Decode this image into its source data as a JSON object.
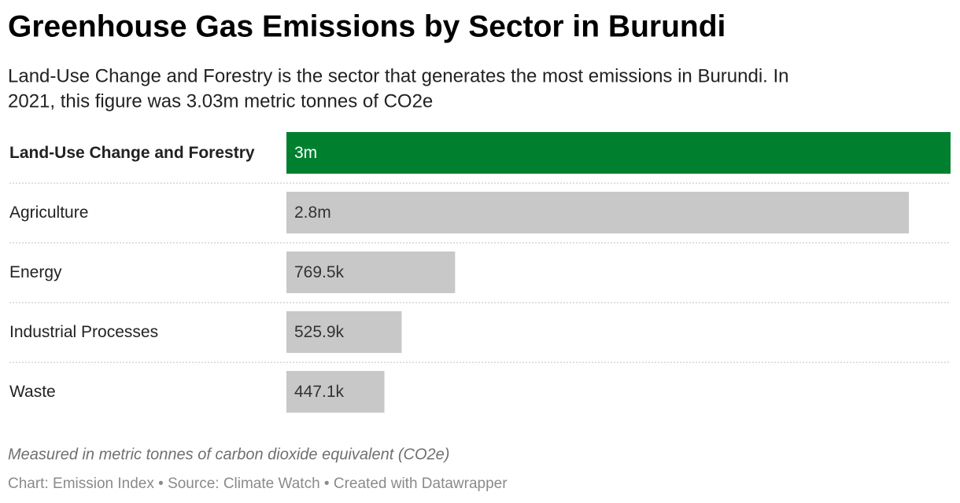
{
  "chart_data": {
    "type": "bar",
    "orientation": "horizontal",
    "title": "Greenhouse Gas Emissions by Sector in Burundi",
    "subtitle_lines": [
      "Land-Use Change and Forestry is the sector that generates the most emissions in Burundi. In",
      "2021, this figure was 3.03m metric tonnes of CO2e"
    ],
    "categories": [
      "Land-Use Change and Forestry",
      "Agriculture",
      "Energy",
      "Industrial Processes",
      "Waste"
    ],
    "values": [
      3030000,
      2840000,
      769500,
      525900,
      447100
    ],
    "value_labels": [
      "3m",
      "2.8m",
      "769.5k",
      "525.9k",
      "447.1k"
    ],
    "color": "#c8c8c8",
    "highlight_color": "#00802f",
    "highlight_index": 0,
    "note": "Measured in metric tonnes of carbon dioxide equivalent (CO2e)",
    "footer": "Chart: Emission Index • Source: Climate Watch • Created with Datawrapper"
  }
}
